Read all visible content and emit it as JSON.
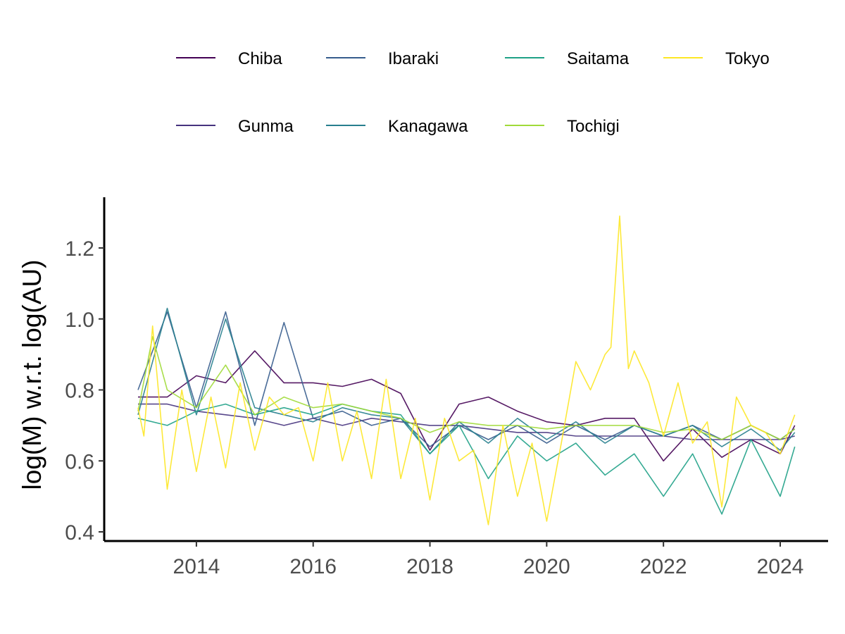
{
  "chart_data": {
    "type": "line",
    "title": "",
    "xlabel": "",
    "ylabel": "log(M) w.r.t. log(AU)",
    "xlim": [
      2012.8,
      2024.8
    ],
    "ylim": [
      0.4,
      1.32
    ],
    "x_ticks": [
      2014,
      2016,
      2018,
      2020,
      2022,
      2024
    ],
    "x_tick_labels": [
      "2014",
      "2016",
      "2018",
      "2020",
      "2022",
      "2024"
    ],
    "y_ticks": [
      0.4,
      0.6,
      0.8,
      1.0,
      1.2
    ],
    "y_tick_labels": [
      "0.4",
      "0.6",
      "0.8",
      "1.0",
      "1.2"
    ],
    "grid": false,
    "legend_position": "top",
    "legend_columns": [
      "Chiba",
      "Ibaraki",
      "Saitama",
      "Tokyo",
      "Gunma",
      "Kanagawa",
      "Tochigi"
    ],
    "series": [
      {
        "name": "Chiba",
        "color": "#440154",
        "x": [
          2013.0,
          2013.5,
          2014.0,
          2014.5,
          2015.0,
          2015.5,
          2016.0,
          2016.5,
          2017.0,
          2017.5,
          2018.0,
          2018.5,
          2019.0,
          2019.5,
          2020.0,
          2020.5,
          2021.0,
          2021.5,
          2022.0,
          2022.5,
          2023.0,
          2023.5,
          2024.0,
          2024.25
        ],
        "values": [
          0.78,
          0.78,
          0.84,
          0.82,
          0.91,
          0.82,
          0.82,
          0.81,
          0.83,
          0.79,
          0.63,
          0.76,
          0.78,
          0.74,
          0.71,
          0.7,
          0.72,
          0.72,
          0.6,
          0.69,
          0.61,
          0.66,
          0.62,
          0.7
        ]
      },
      {
        "name": "Gunma",
        "color": "#46337e",
        "x": [
          2013.0,
          2013.5,
          2014.0,
          2014.5,
          2015.0,
          2015.5,
          2016.0,
          2016.5,
          2017.0,
          2017.5,
          2018.0,
          2018.5,
          2019.0,
          2019.5,
          2020.0,
          2020.5,
          2021.0,
          2021.5,
          2022.0,
          2022.5,
          2023.0,
          2023.5,
          2024.0,
          2024.25
        ],
        "values": [
          0.76,
          0.76,
          0.74,
          0.73,
          0.72,
          0.7,
          0.72,
          0.7,
          0.72,
          0.71,
          0.7,
          0.7,
          0.69,
          0.68,
          0.68,
          0.67,
          0.67,
          0.67,
          0.67,
          0.66,
          0.66,
          0.66,
          0.66,
          0.67
        ]
      },
      {
        "name": "Ibaraki",
        "color": "#365c8d",
        "x": [
          2013.0,
          2013.5,
          2014.0,
          2014.5,
          2015.0,
          2015.5,
          2016.0,
          2016.5,
          2017.0,
          2017.5,
          2018.0,
          2018.5,
          2019.0,
          2019.5,
          2020.0,
          2020.5,
          2021.0,
          2021.5,
          2022.0,
          2022.5,
          2023.0,
          2023.5,
          2024.0,
          2024.25
        ],
        "values": [
          0.8,
          1.02,
          0.75,
          1.02,
          0.7,
          0.99,
          0.72,
          0.74,
          0.7,
          0.72,
          0.64,
          0.7,
          0.66,
          0.7,
          0.65,
          0.7,
          0.66,
          0.7,
          0.67,
          0.7,
          0.66,
          0.7,
          0.66,
          0.69
        ]
      },
      {
        "name": "Kanagawa",
        "color": "#277f8e",
        "x": [
          2013.0,
          2013.5,
          2014.0,
          2014.5,
          2015.0,
          2015.5,
          2016.0,
          2016.5,
          2017.0,
          2017.5,
          2018.0,
          2018.5,
          2019.0,
          2019.5,
          2020.0,
          2020.5,
          2021.0,
          2021.5,
          2022.0,
          2022.5,
          2023.0,
          2023.5,
          2024.0,
          2024.25
        ],
        "values": [
          0.73,
          1.03,
          0.73,
          1.0,
          0.75,
          0.73,
          0.71,
          0.75,
          0.73,
          0.72,
          0.62,
          0.71,
          0.65,
          0.72,
          0.66,
          0.71,
          0.65,
          0.7,
          0.67,
          0.7,
          0.64,
          0.69,
          0.63,
          0.68
        ]
      },
      {
        "name": "Saitama",
        "color": "#1fa187",
        "x": [
          2013.0,
          2013.5,
          2014.0,
          2014.5,
          2015.0,
          2015.5,
          2016.0,
          2016.5,
          2017.0,
          2017.5,
          2018.0,
          2018.5,
          2019.0,
          2019.5,
          2020.0,
          2020.5,
          2021.0,
          2021.5,
          2022.0,
          2022.5,
          2023.0,
          2023.5,
          2024.0,
          2024.25
        ],
        "values": [
          0.72,
          0.7,
          0.74,
          0.76,
          0.73,
          0.75,
          0.73,
          0.76,
          0.74,
          0.73,
          0.62,
          0.7,
          0.55,
          0.67,
          0.6,
          0.65,
          0.56,
          0.62,
          0.5,
          0.62,
          0.45,
          0.66,
          0.5,
          0.64
        ]
      },
      {
        "name": "Tochigi",
        "color": "#a0da39",
        "x": [
          2013.0,
          2013.25,
          2013.5,
          2014.0,
          2014.5,
          2015.0,
          2015.5,
          2016.0,
          2016.5,
          2017.0,
          2017.5,
          2018.0,
          2018.5,
          2019.0,
          2019.5,
          2020.0,
          2020.5,
          2021.0,
          2021.5,
          2022.0,
          2022.5,
          2023.0,
          2023.5,
          2024.0,
          2024.25
        ],
        "values": [
          0.74,
          0.95,
          0.8,
          0.75,
          0.87,
          0.73,
          0.78,
          0.75,
          0.76,
          0.74,
          0.72,
          0.68,
          0.71,
          0.7,
          0.7,
          0.69,
          0.7,
          0.7,
          0.7,
          0.68,
          0.69,
          0.66,
          0.7,
          0.66,
          0.69
        ]
      },
      {
        "name": "Tokyo",
        "color": "#fde725",
        "x": [
          2013.0,
          2013.1,
          2013.25,
          2013.5,
          2013.75,
          2014.0,
          2014.25,
          2014.5,
          2014.75,
          2015.0,
          2015.25,
          2015.5,
          2015.75,
          2016.0,
          2016.25,
          2016.5,
          2016.75,
          2017.0,
          2017.25,
          2017.5,
          2017.75,
          2018.0,
          2018.25,
          2018.5,
          2018.75,
          2019.0,
          2019.25,
          2019.5,
          2019.75,
          2020.0,
          2020.25,
          2020.5,
          2020.75,
          2021.0,
          2021.1,
          2021.25,
          2021.4,
          2021.5,
          2021.75,
          2022.0,
          2022.25,
          2022.5,
          2022.75,
          2023.0,
          2023.25,
          2023.5,
          2023.75,
          2024.0,
          2024.25
        ],
        "values": [
          0.75,
          0.67,
          0.98,
          0.52,
          0.8,
          0.57,
          0.78,
          0.58,
          0.82,
          0.63,
          0.78,
          0.73,
          0.75,
          0.6,
          0.82,
          0.6,
          0.74,
          0.55,
          0.83,
          0.55,
          0.72,
          0.49,
          0.72,
          0.6,
          0.63,
          0.42,
          0.7,
          0.5,
          0.65,
          0.43,
          0.65,
          0.88,
          0.8,
          0.9,
          0.92,
          1.29,
          0.86,
          0.91,
          0.82,
          0.67,
          0.82,
          0.65,
          0.71,
          0.47,
          0.78,
          0.7,
          0.68,
          0.62,
          0.73
        ]
      }
    ]
  }
}
